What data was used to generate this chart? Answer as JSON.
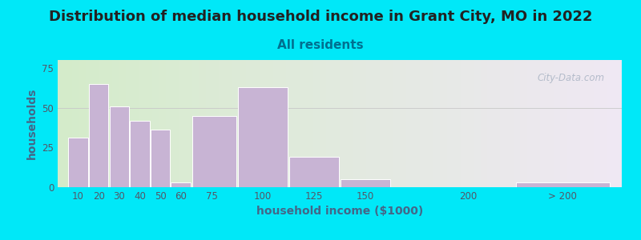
{
  "title": "Distribution of median household income in Grant City, MO in 2022",
  "subtitle": "All residents",
  "xlabel": "household income ($1000)",
  "ylabel": "households",
  "bar_heights": [
    31,
    65,
    51,
    42,
    36,
    3,
    45,
    63,
    19,
    5,
    0,
    3
  ],
  "bar_left_edges": [
    5,
    15,
    25,
    35,
    45,
    55,
    65,
    87.5,
    112.5,
    137.5,
    175,
    222.5
  ],
  "bar_widths": [
    10,
    10,
    10,
    10,
    10,
    10,
    22.5,
    25,
    25,
    25,
    47.5,
    47.5
  ],
  "bar_color": "#c8b4d4",
  "bar_edgecolor": "#ffffff",
  "ylim": [
    0,
    80
  ],
  "yticks": [
    0,
    25,
    50,
    75
  ],
  "xlim": [
    0,
    275
  ],
  "bg_outer": "#00e8f8",
  "bg_plot_left": "#d4ecca",
  "bg_plot_right": "#f0e8f4",
  "title_fontsize": 13,
  "subtitle_fontsize": 11,
  "subtitle_color": "#007090",
  "axis_label_fontsize": 10,
  "axis_label_color": "#446688",
  "tick_fontsize": 8.5,
  "tick_color": "#555566",
  "watermark_text": "City-Data.com",
  "watermark_color": "#aab4c4",
  "xtick_labels": [
    "10",
    "20",
    "30",
    "40",
    "50",
    "60",
    "75",
    "100",
    "125",
    "150",
    "200",
    "> 200"
  ],
  "xtick_positions": [
    10,
    20,
    30,
    40,
    50,
    60,
    75,
    100,
    125,
    150,
    200,
    246
  ]
}
